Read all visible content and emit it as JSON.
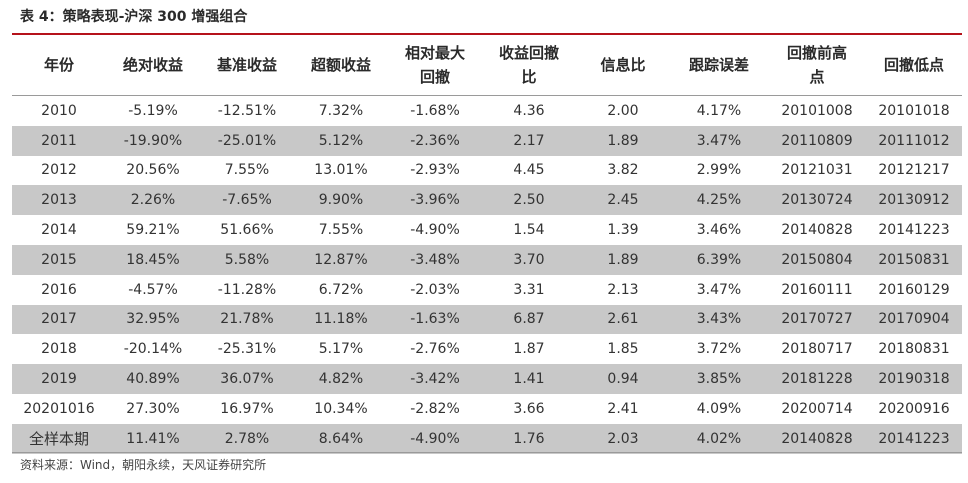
{
  "caption": "表 4：策略表现-沪深 300 增强组合",
  "table": {
    "headers": [
      "年份",
      "绝对收益",
      "基准收益",
      "超额收益",
      "相对最大回撤",
      "收益回撤比",
      "信息比",
      "跟踪误差",
      "回撤前高点",
      "回撤低点"
    ],
    "rows": [
      [
        "2010",
        "-5.19%",
        "-12.51%",
        "7.32%",
        "-1.68%",
        "4.36",
        "2.00",
        "4.17%",
        "20101008",
        "20101018"
      ],
      [
        "2011",
        "-19.90%",
        "-25.01%",
        "5.12%",
        "-2.36%",
        "2.17",
        "1.89",
        "3.47%",
        "20110809",
        "20111012"
      ],
      [
        "2012",
        "20.56%",
        "7.55%",
        "13.01%",
        "-2.93%",
        "4.45",
        "3.82",
        "2.99%",
        "20121031",
        "20121217"
      ],
      [
        "2013",
        "2.26%",
        "-7.65%",
        "9.90%",
        "-3.96%",
        "2.50",
        "2.45",
        "4.25%",
        "20130724",
        "20130912"
      ],
      [
        "2014",
        "59.21%",
        "51.66%",
        "7.55%",
        "-4.90%",
        "1.54",
        "1.39",
        "3.46%",
        "20140828",
        "20141223"
      ],
      [
        "2015",
        "18.45%",
        "5.58%",
        "12.87%",
        "-3.48%",
        "3.70",
        "1.89",
        "6.39%",
        "20150804",
        "20150831"
      ],
      [
        "2016",
        "-4.57%",
        "-11.28%",
        "6.72%",
        "-2.03%",
        "3.31",
        "2.13",
        "3.47%",
        "20160111",
        "20160129"
      ],
      [
        "2017",
        "32.95%",
        "21.78%",
        "11.18%",
        "-1.63%",
        "6.87",
        "2.61",
        "3.43%",
        "20170727",
        "20170904"
      ],
      [
        "2018",
        "-20.14%",
        "-25.31%",
        "5.17%",
        "-2.76%",
        "1.87",
        "1.85",
        "3.72%",
        "20180717",
        "20180831"
      ],
      [
        "2019",
        "40.89%",
        "36.07%",
        "4.82%",
        "-3.42%",
        "1.41",
        "0.94",
        "3.85%",
        "20181228",
        "20190318"
      ],
      [
        "20201016",
        "27.30%",
        "16.97%",
        "10.34%",
        "-2.82%",
        "3.66",
        "2.41",
        "4.09%",
        "20200714",
        "20200916"
      ],
      [
        "全样本期",
        "11.41%",
        "2.78%",
        "8.64%",
        "-4.90%",
        "1.76",
        "2.03",
        "4.02%",
        "20140828",
        "20141223"
      ]
    ]
  },
  "source": "资料来源：Wind，朝阳永续，天风证券研究所",
  "colors": {
    "top_rule": "#b5121b",
    "shaded_row": "#c8c8c8",
    "text": "#333333"
  }
}
